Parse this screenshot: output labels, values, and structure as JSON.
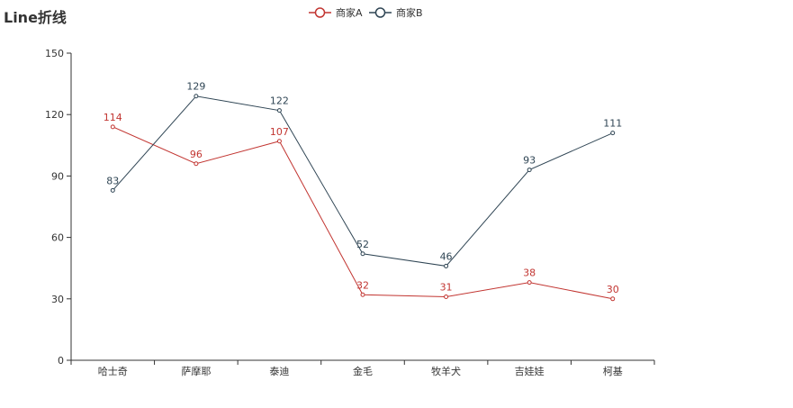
{
  "chart_data": {
    "type": "line",
    "title": "Line折线",
    "categories": [
      "哈士奇",
      "萨摩耶",
      "泰迪",
      "金毛",
      "牧羊犬",
      "吉娃娃",
      "柯基"
    ],
    "series": [
      {
        "name": "商家A",
        "color": "#c23531",
        "values": [
          114,
          96,
          107,
          32,
          31,
          38,
          30
        ]
      },
      {
        "name": "商家B",
        "color": "#2f4554",
        "values": [
          83,
          129,
          122,
          52,
          46,
          93,
          111
        ]
      }
    ],
    "ylim": [
      0,
      150
    ],
    "yticks": [
      0,
      30,
      60,
      90,
      120,
      150
    ],
    "legend_position": "top-center",
    "grid": false
  }
}
